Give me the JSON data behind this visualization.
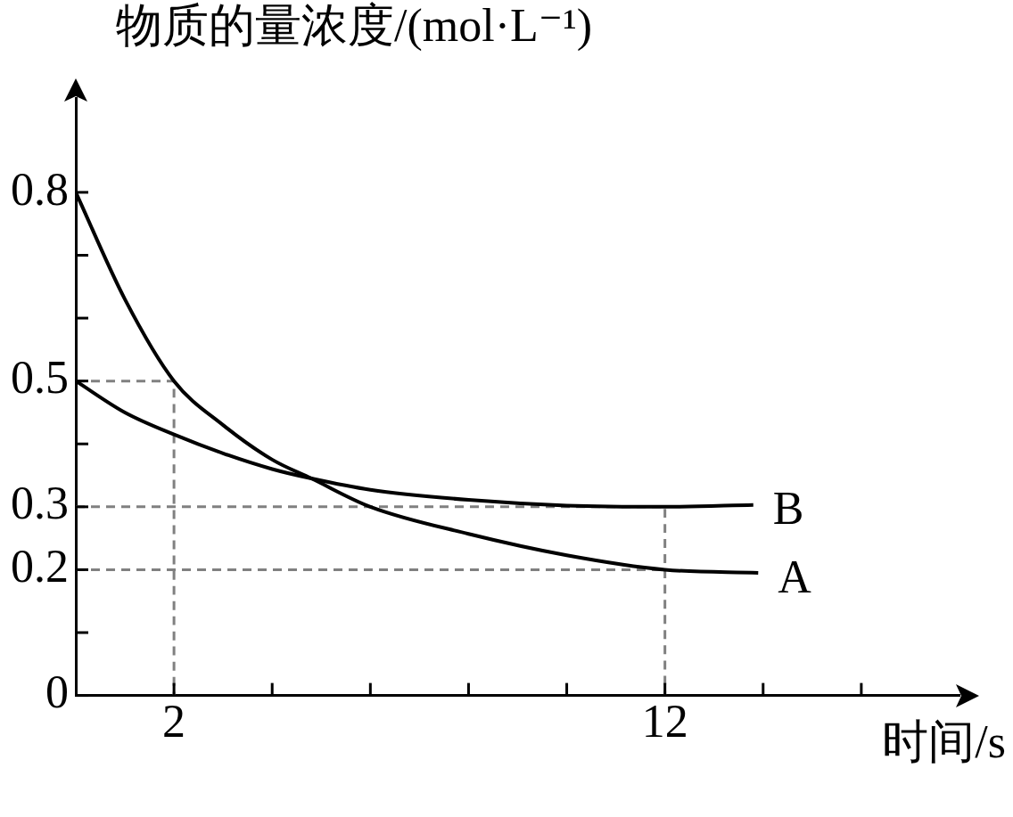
{
  "chart_data": {
    "type": "line",
    "xlabel": "时间/s",
    "ylabel": "物质的量浓度/(mol·L⁻¹)",
    "xlim": [
      0,
      18
    ],
    "ylim": [
      0,
      0.95
    ],
    "xticks": [
      2,
      {
        "value": 4,
        "label": null
      },
      {
        "value": 6,
        "label": null
      },
      {
        "value": 8,
        "label": null
      },
      {
        "value": 10,
        "label": null
      },
      12,
      {
        "value": 14,
        "label": null
      },
      {
        "value": 16,
        "label": null
      }
    ],
    "yticks": [
      0,
      {
        "value": 0.1,
        "label": null
      },
      0.2,
      0.3,
      {
        "value": 0.4,
        "label": null
      },
      0.5,
      {
        "value": 0.6,
        "label": null
      },
      {
        "value": 0.7,
        "label": null
      },
      0.8
    ],
    "grid": false,
    "legend": false,
    "marker": "none",
    "series": [
      {
        "name": "A",
        "color": "#000000",
        "x": [
          0,
          1,
          2,
          3,
          4,
          4.8,
          6,
          8,
          10,
          12,
          13.9
        ],
        "values": [
          0.8,
          0.63,
          0.5,
          0.43,
          0.375,
          0.345,
          0.3,
          0.257,
          0.223,
          0.2,
          0.195
        ]
      },
      {
        "name": "B",
        "color": "#000000",
        "x": [
          0,
          1,
          2,
          3,
          4,
          4.8,
          6,
          8,
          10,
          12,
          13.8
        ],
        "values": [
          0.5,
          0.45,
          0.415,
          0.385,
          0.36,
          0.345,
          0.327,
          0.311,
          0.302,
          0.3,
          0.303
        ]
      },
      {
        "color": "#808080",
        "line_style": "dashed",
        "x": [
          0,
          2,
          2
        ],
        "values": [
          0.5,
          0.5,
          0
        ]
      },
      {
        "color": "#808080",
        "line_style": "dashed",
        "x": [
          0,
          12,
          12
        ],
        "values": [
          0.3,
          0.3,
          0
        ]
      },
      {
        "color": "#808080",
        "line_style": "dashed",
        "x": [
          0,
          12
        ],
        "values": [
          0.2,
          0.2
        ]
      }
    ]
  }
}
